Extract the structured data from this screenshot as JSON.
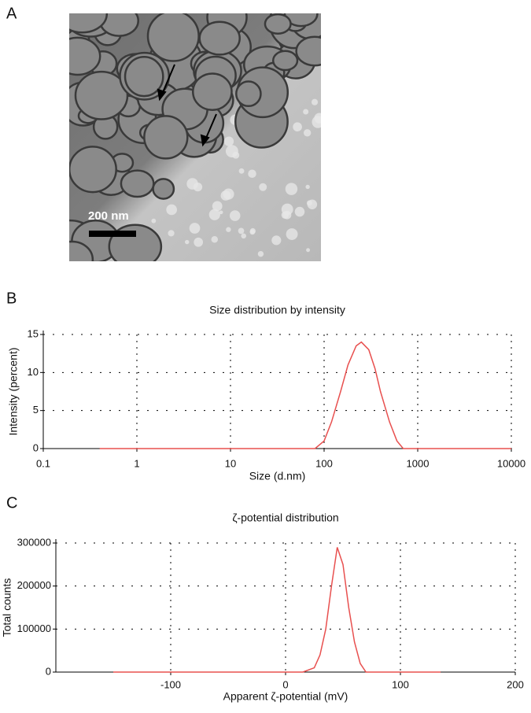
{
  "panel_labels": [
    "A",
    "B",
    "C"
  ],
  "scale_bar_label": "200 nm",
  "chart_data": [
    {
      "type": "line",
      "title": "Size distribution by intensity",
      "x_label": "Size (d.nm)",
      "y_label": "Intensity (percent)",
      "xscale": "log",
      "grid": true,
      "xlim": [
        0.1,
        10000
      ],
      "xticks": [
        0.1,
        1,
        10,
        100,
        1000,
        10000
      ],
      "ylim": [
        0,
        15
      ],
      "yticks": [
        0,
        5,
        10,
        15
      ],
      "color": "#e8504f",
      "x": [
        0.4,
        1,
        10,
        80,
        100,
        120,
        150,
        180,
        220,
        250,
        300,
        350,
        400,
        500,
        600,
        700,
        1000,
        10000
      ],
      "values": [
        0,
        0,
        0,
        0,
        1,
        3.5,
        7.5,
        11,
        13.5,
        14,
        13,
        10.5,
        7.5,
        3.5,
        1,
        0,
        0,
        0
      ]
    },
    {
      "type": "line",
      "title": "ζ-potential distribution",
      "x_label": "Apparent ζ-potential (mV)",
      "y_label": "Total counts",
      "grid": true,
      "xlim": [
        -200,
        200
      ],
      "xticks": [
        -100,
        0,
        100,
        200
      ],
      "ylim": [
        0,
        300000
      ],
      "yticks": [
        0,
        100000,
        200000,
        300000
      ],
      "color": "#e8504f",
      "x": [
        -150,
        0,
        15,
        25,
        30,
        35,
        40,
        45,
        50,
        55,
        60,
        65,
        70,
        135
      ],
      "values": [
        0,
        0,
        0,
        10000,
        40000,
        100000,
        200000,
        290000,
        250000,
        150000,
        70000,
        20000,
        0,
        0
      ]
    }
  ]
}
